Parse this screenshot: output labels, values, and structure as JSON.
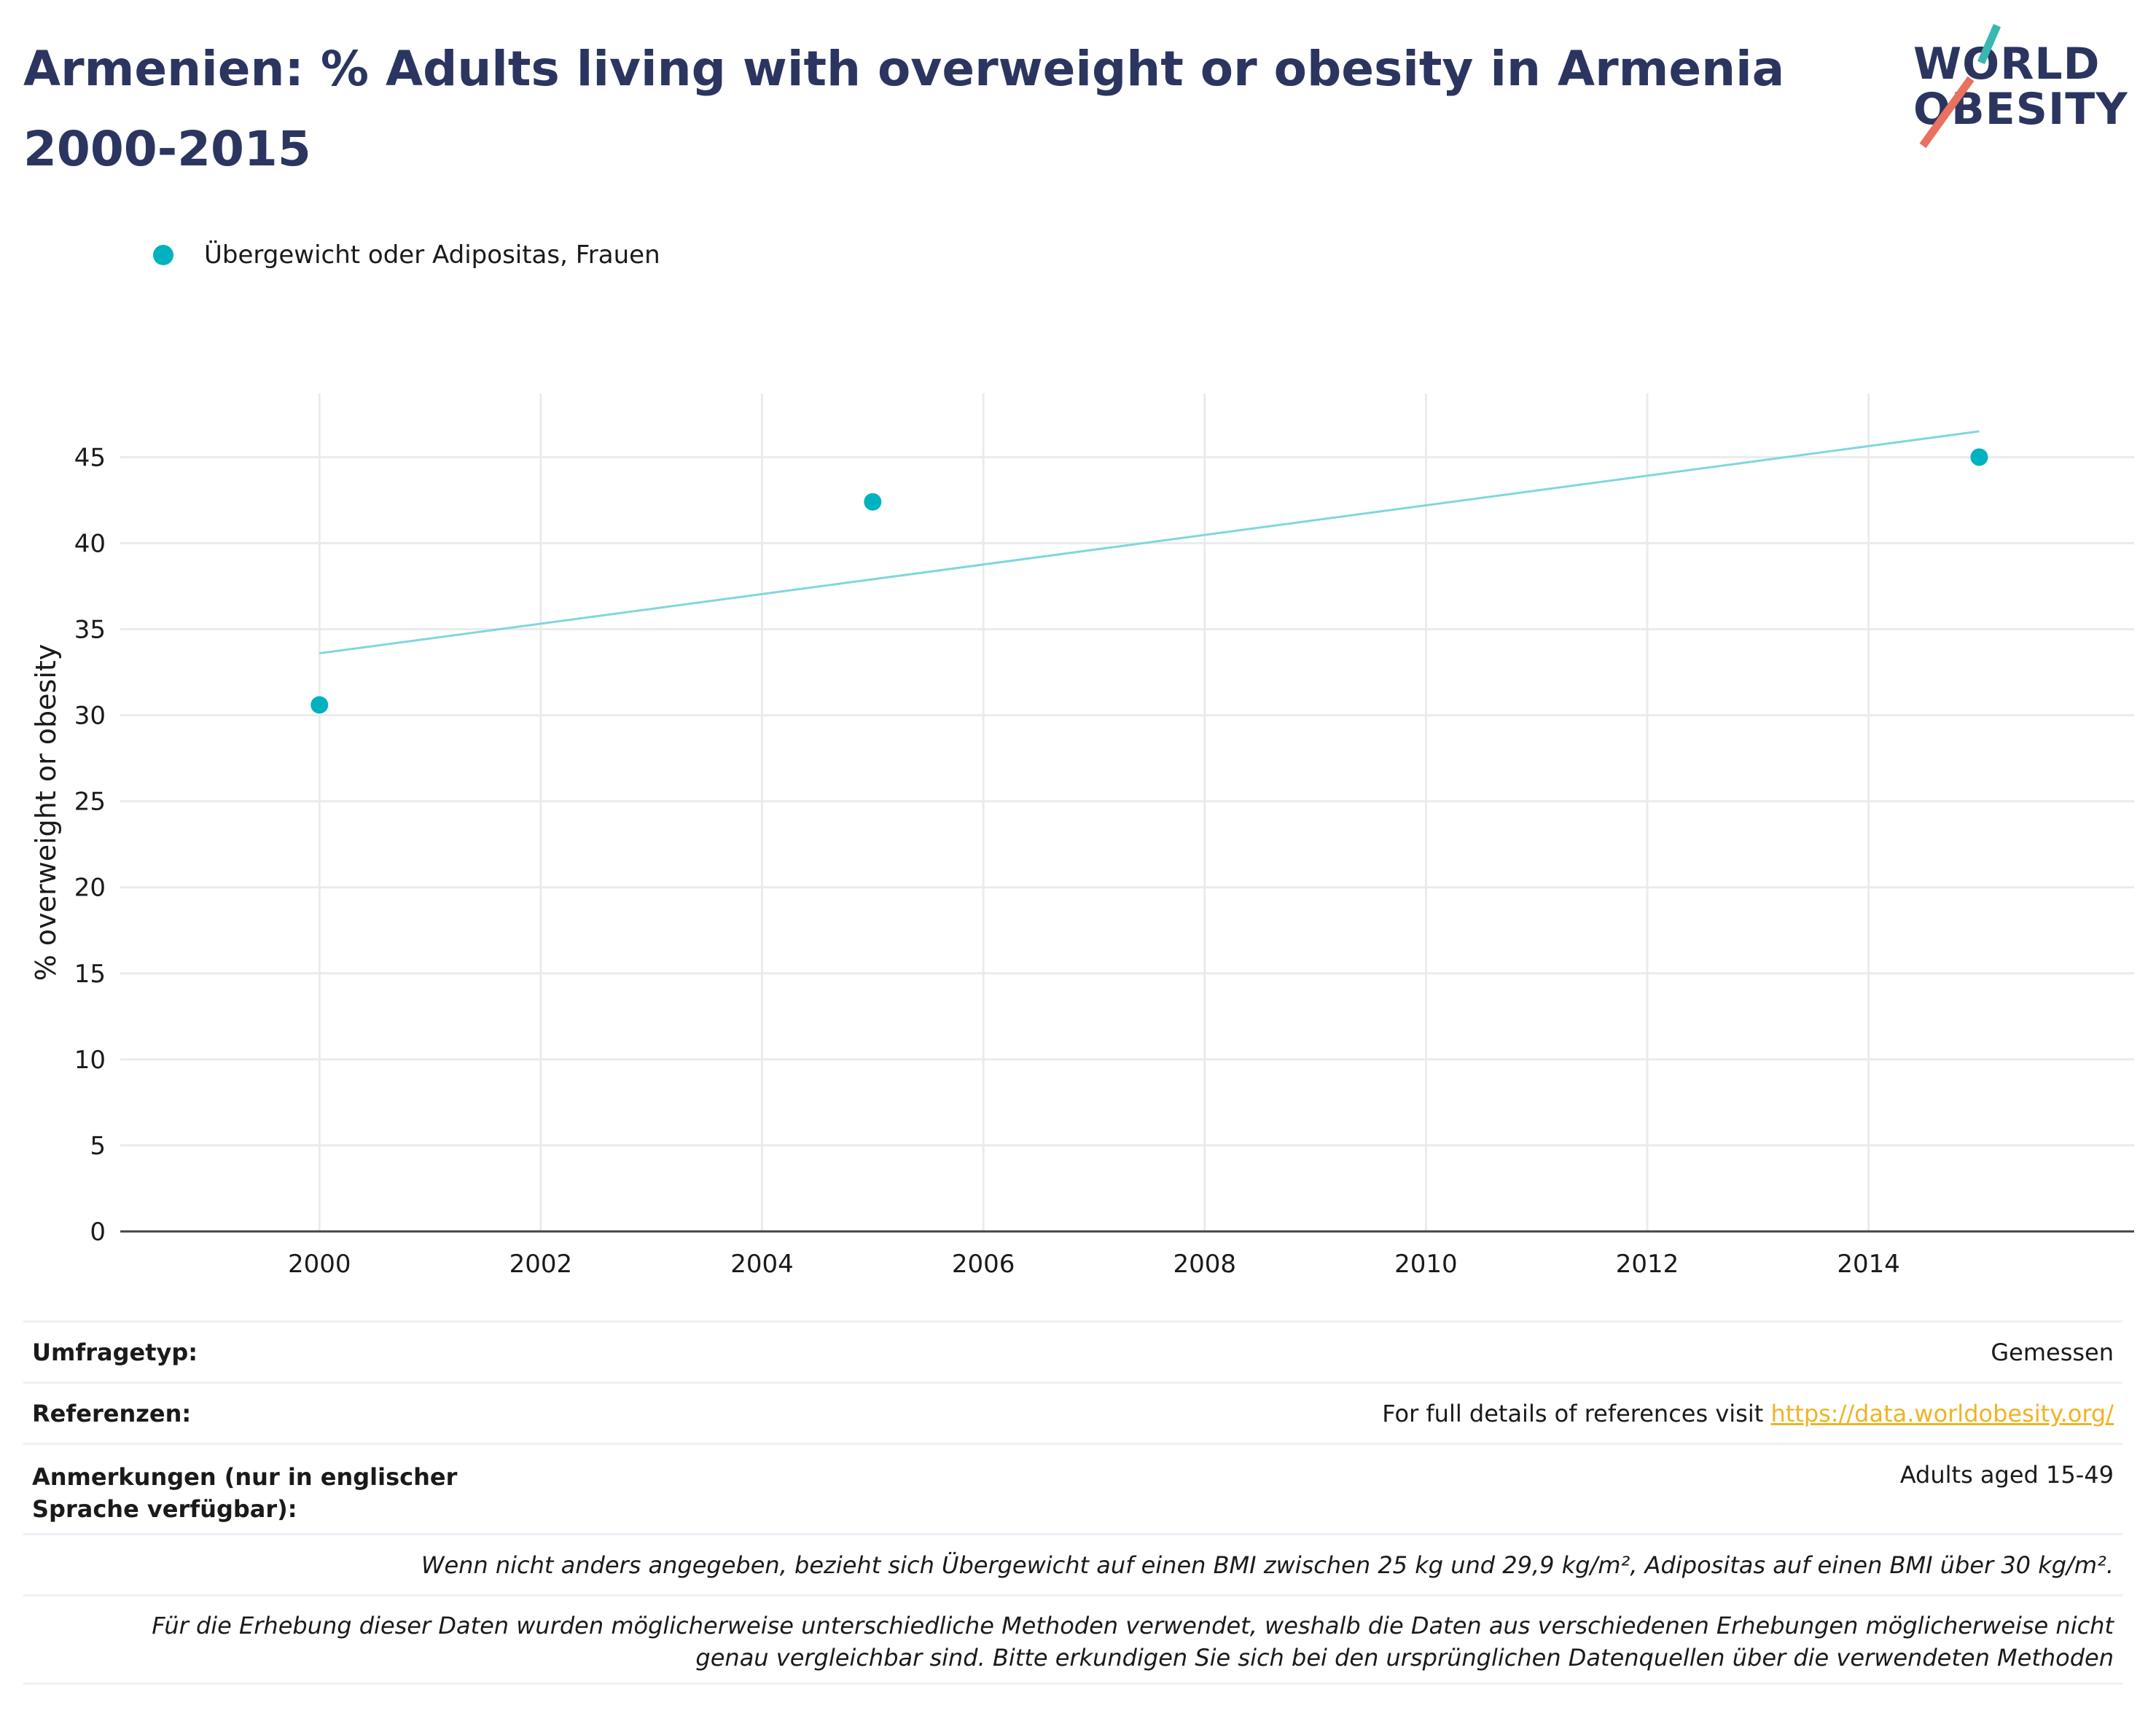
{
  "title": "Armenien: % Adults living with overweight or obesity in Armenia 2000-2015",
  "logo": {
    "line1": "WORLD",
    "line2": "OBESITY",
    "colors": {
      "slash_top": "#3bb7b3",
      "slash_bottom": "#e8715f"
    }
  },
  "colors": {
    "series": "#00b2bf",
    "trend": "#7fd7dc",
    "grid": "#ebebeb",
    "axis": "#444444",
    "title": "#2b3560",
    "link": "#f0b323"
  },
  "chart_data": {
    "type": "scatter",
    "title": "Armenien: % Adults living with overweight or obesity in Armenia 2000-2015",
    "xlabel": "",
    "ylabel": "% overweight or obesity",
    "xlim": [
      1998.2,
      2016.4
    ],
    "ylim": [
      0,
      48.7
    ],
    "x_ticks": [
      2000,
      2002,
      2004,
      2006,
      2008,
      2010,
      2012,
      2014
    ],
    "y_ticks": [
      0,
      5,
      10,
      15,
      20,
      25,
      30,
      35,
      40,
      45
    ],
    "grid": true,
    "legend_position": "top-left",
    "series": [
      {
        "name": "Übergewicht oder Adipositas, Frauen",
        "x": [
          2000,
          2005,
          2015
        ],
        "y": [
          30.6,
          42.4,
          45.0
        ]
      }
    ],
    "trendline": {
      "x": [
        2000,
        2015
      ],
      "y": [
        33.6,
        46.5
      ]
    }
  },
  "info": {
    "survey_label": "Umfragetyp:",
    "survey_value": "Gemessen",
    "refs_label": "Referenzen:",
    "refs_text": "For full details of references visit ",
    "refs_link": "https://data.worldobesity.org/",
    "notes_label": "Anmerkungen (nur in englischer Sprache verfügbar):",
    "notes_value": "Adults aged 15-49",
    "definition": "Wenn nicht anders angegeben, bezieht sich Übergewicht auf einen BMI zwischen 25 kg und 29,9 kg/m², Adipositas auf einen BMI über 30 kg/m².",
    "disclaimer": "Für die Erhebung dieser Daten wurden möglicherweise unterschiedliche Methoden verwendet, weshalb die Daten aus verschiedenen Erhebungen möglicherweise nicht genau vergleichbar sind. Bitte erkundigen Sie sich bei den ursprünglichen Datenquellen über die verwendeten Methoden"
  }
}
